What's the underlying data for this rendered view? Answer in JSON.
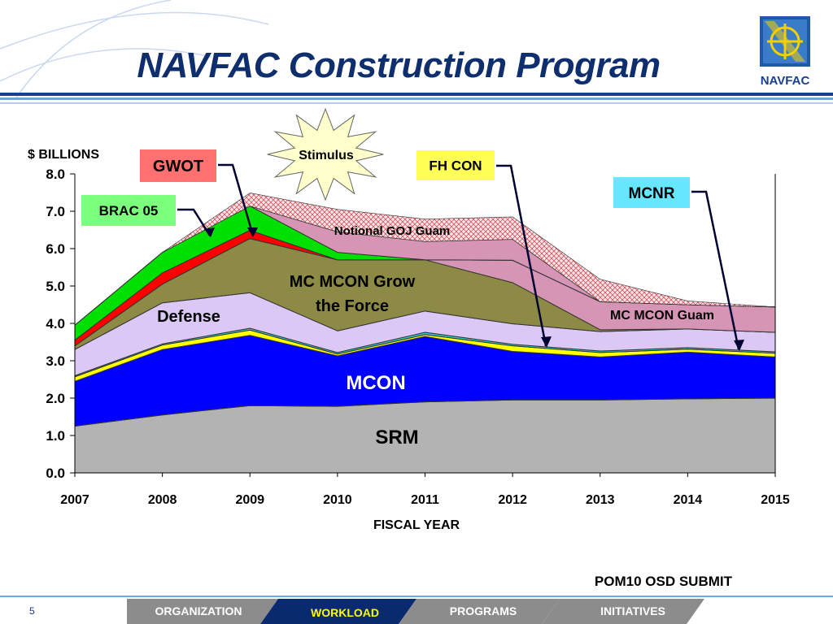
{
  "slide": {
    "title": "NAVFAC Construction Program",
    "logo_text": "NAVFAC",
    "footnote": "POM10 OSD SUBMIT",
    "page_number": "5",
    "nav_tabs": [
      {
        "label": "ORGANIZATION",
        "active": false
      },
      {
        "label": "WORKLOAD",
        "active": true
      },
      {
        "label": "PROGRAMS",
        "active": false
      },
      {
        "label": "INITIATIVES",
        "active": false
      }
    ]
  },
  "colors": {
    "title": "#0f2e6e",
    "nav_inactive": "#8c8c8c",
    "nav_active": "#0a2a6e",
    "header_rule": "#4a8fd0"
  },
  "chart_data": {
    "type": "area",
    "stacked": true,
    "x": [
      2007,
      2008,
      2009,
      2010,
      2011,
      2012,
      2013,
      2014,
      2015
    ],
    "xlabel": "FISCAL YEAR",
    "ylabel": "$ BILLIONS",
    "ylim": [
      0,
      8
    ],
    "yticks": [
      "0.0",
      "1.0",
      "2.0",
      "3.0",
      "4.0",
      "5.0",
      "6.0",
      "7.0",
      "8.0"
    ],
    "grid": false,
    "series": [
      {
        "name": "SRM",
        "color": "#b3b3b3",
        "values": [
          1.25,
          1.55,
          1.8,
          1.78,
          1.9,
          1.95,
          1.95,
          1.98,
          2.0
        ]
      },
      {
        "name": "MCON",
        "color": "#0000ff",
        "values": [
          1.2,
          1.75,
          1.88,
          1.35,
          1.75,
          1.3,
          1.15,
          1.25,
          1.1
        ]
      },
      {
        "name": "FH CON",
        "color": "#ffff00",
        "values": [
          0.12,
          0.12,
          0.14,
          0.05,
          0.05,
          0.15,
          0.12,
          0.08,
          0.1
        ]
      },
      {
        "name": "MCNR",
        "color": "#33cccc",
        "values": [
          0.03,
          0.03,
          0.05,
          0.04,
          0.06,
          0.04,
          0.04,
          0.04,
          0.04
        ]
      },
      {
        "name": "Defense",
        "color": "#dcc8f5",
        "values": [
          0.7,
          1.1,
          0.95,
          0.58,
          0.57,
          0.55,
          0.52,
          0.5,
          0.52
        ]
      },
      {
        "name": "MC MCON Grow the Force",
        "color": "#8c8a44",
        "values": [
          0.1,
          0.5,
          1.45,
          1.9,
          1.37,
          1.1,
          0.05,
          0.0,
          0.0
        ]
      },
      {
        "name": "MC MCON Guam",
        "color": "#d795b5",
        "values": [
          0.0,
          0.0,
          0.0,
          0.0,
          0.0,
          0.6,
          0.75,
          0.65,
          0.68
        ]
      },
      {
        "name": "BRAC 05",
        "color": "#ff0000",
        "values": [
          0.15,
          0.3,
          0.22,
          0.0,
          0.0,
          0.0,
          0.0,
          0.0,
          0.0
        ]
      },
      {
        "name": "GWOT",
        "color": "#00e000",
        "values": [
          0.4,
          0.55,
          0.65,
          0.2,
          0.0,
          0.0,
          0.0,
          0.0,
          0.0
        ]
      },
      {
        "name": "Notional GOJ Guam",
        "color": "#d795b5",
        "values": [
          0.0,
          0.0,
          0.0,
          0.55,
          0.49,
          0.56,
          0.0,
          0.0,
          0.0
        ]
      },
      {
        "name": "Stimulus",
        "color": "#f2d3dd",
        "hatched": true,
        "values": [
          0.0,
          0.0,
          0.35,
          0.6,
          0.6,
          0.6,
          0.6,
          0.1,
          0.0
        ]
      }
    ],
    "annotations": {
      "stimulus": "Stimulus",
      "gwot": "GWOT",
      "brac": "BRAC 05",
      "fhcon": "FH CON",
      "mcnr": "MCNR",
      "goj": "Notional GOJ Guam",
      "grow_line1": "MC MCON Grow",
      "grow_line2": "the Force",
      "guam": "MC MCON Guam",
      "defense": "Defense",
      "mcon": "MCON",
      "srm": "SRM"
    }
  }
}
